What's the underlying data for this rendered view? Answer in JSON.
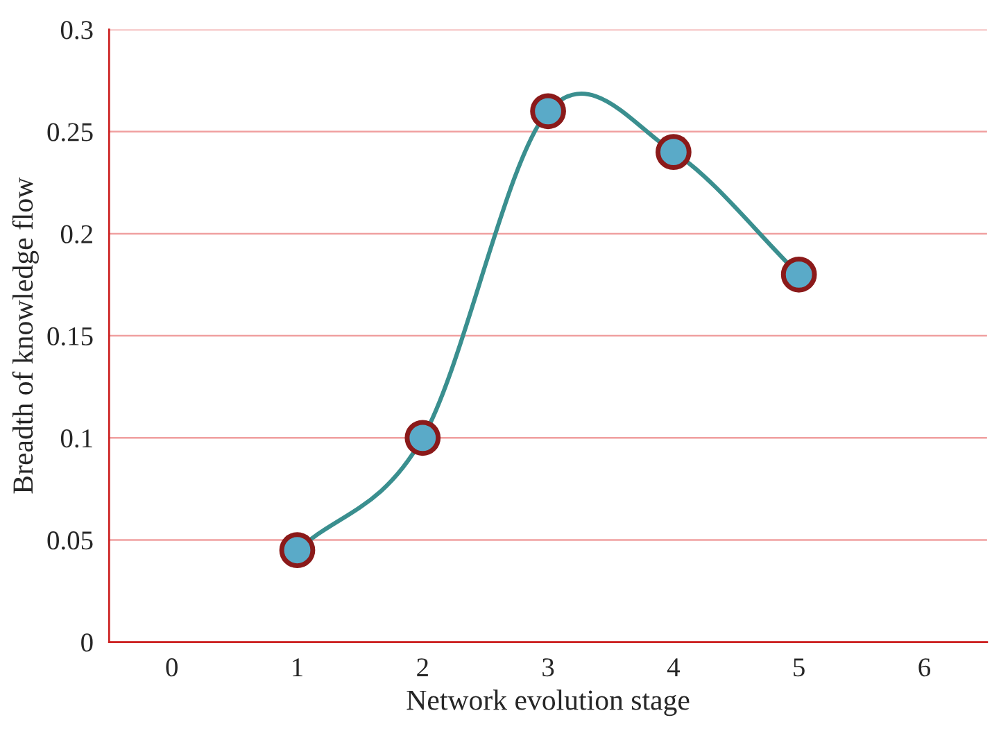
{
  "chart_data": {
    "type": "line",
    "xlabel": "Network evolution stage",
    "ylabel": "Breadth of knowledge flow",
    "x": [
      1,
      2,
      3,
      4,
      5
    ],
    "series": [
      {
        "color": "#3a8f8f",
        "values": [
          0.045,
          0.1,
          0.26,
          0.24,
          0.18
        ]
      }
    ],
    "xlim": [
      -0.5,
      6.5
    ],
    "xticks": [
      0,
      1,
      2,
      3,
      4,
      5,
      6
    ],
    "ylim": [
      0,
      0.3
    ],
    "yticks": [
      0,
      0.05,
      0.1,
      0.15,
      0.2,
      0.25,
      0.3
    ],
    "grid": "y",
    "marker": "circle",
    "line_style": "solid",
    "legend": false
  }
}
